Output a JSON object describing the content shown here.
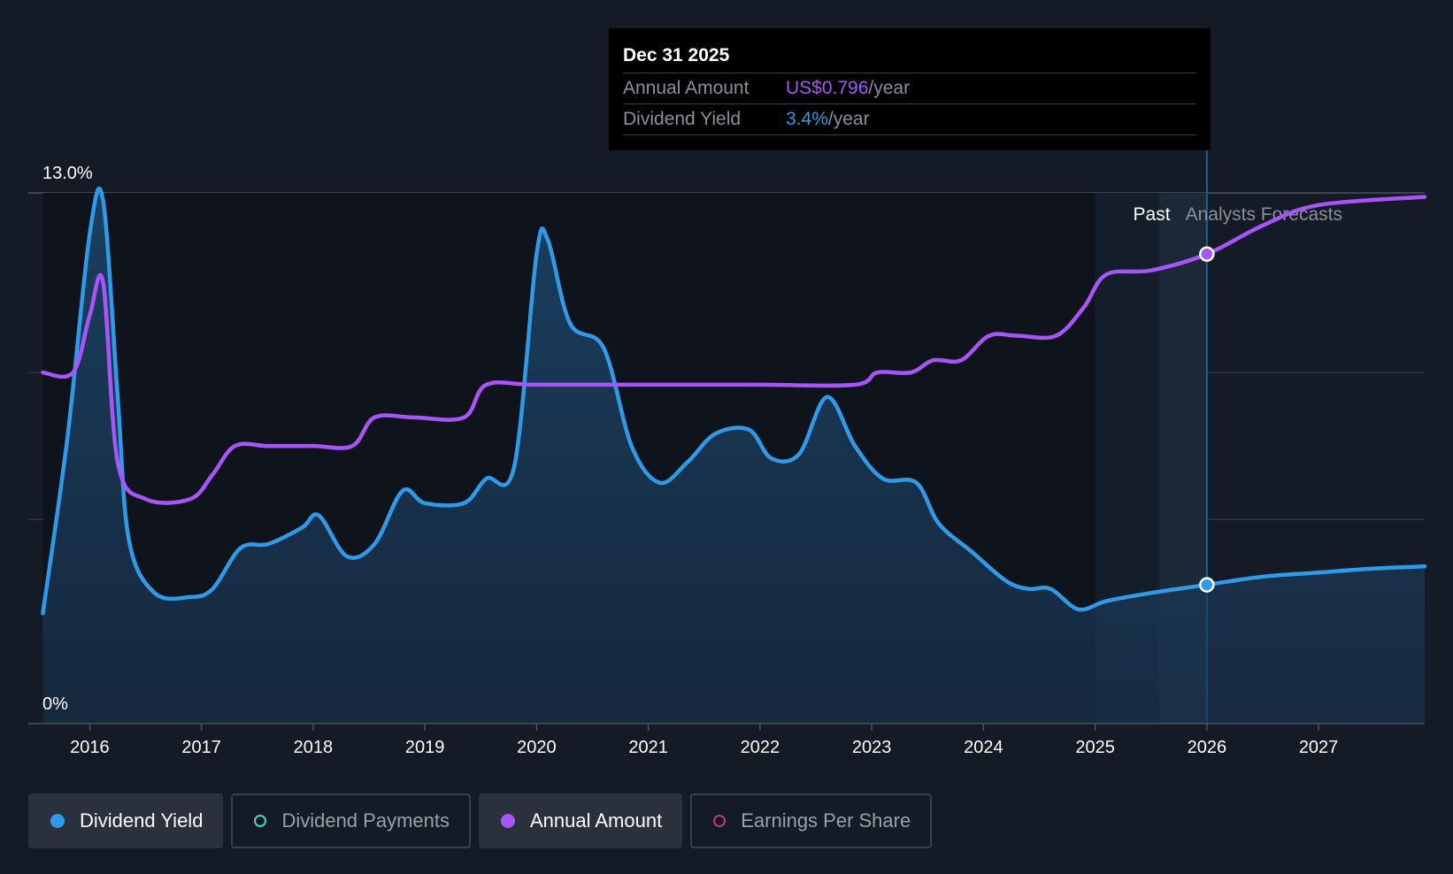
{
  "tooltip": {
    "date": "Dec 31 2025",
    "rows": [
      {
        "label": "Annual Amount",
        "value": "US$0.796",
        "unit": "/year"
      },
      {
        "label": "Dividend Yield",
        "value": "3.4%",
        "unit": "/year"
      }
    ]
  },
  "legend": [
    {
      "label": "Dividend Yield",
      "color": "#2f9be8",
      "active": true
    },
    {
      "label": "Dividend Payments",
      "color": "#4fd1c5",
      "active": false
    },
    {
      "label": "Annual Amount",
      "color": "#a855f7",
      "active": true
    },
    {
      "label": "Earnings Per Share",
      "color": "#c0397a",
      "active": false
    }
  ],
  "colors": {
    "yield": "#2f9be8",
    "amount": "#a855f7",
    "background": "#151b26"
  },
  "chart_data": {
    "type": "line",
    "xlim": [
      2015.45,
      2027.95
    ],
    "ylim": [
      0,
      13.0
    ],
    "y_tick_labels": [
      "0%",
      "13.0%"
    ],
    "x_ticks": [
      2016,
      2017,
      2018,
      2019,
      2020,
      2021,
      2022,
      2023,
      2024,
      2025,
      2026,
      2027
    ],
    "regions": {
      "past_label": "Past",
      "forecast_label": "Analysts Forecasts",
      "past_start": 2025.0,
      "cursor": 2026.0
    },
    "series": [
      {
        "name": "Dividend Yield",
        "unit": "%",
        "area": true,
        "points": [
          [
            2015.58,
            2.7
          ],
          [
            2015.8,
            7.0
          ],
          [
            2016.0,
            12.0
          ],
          [
            2016.12,
            12.8
          ],
          [
            2016.25,
            8.0
          ],
          [
            2016.35,
            4.5
          ],
          [
            2016.58,
            3.2
          ],
          [
            2016.9,
            3.1
          ],
          [
            2017.1,
            3.3
          ],
          [
            2017.35,
            4.3
          ],
          [
            2017.6,
            4.4
          ],
          [
            2017.9,
            4.8
          ],
          [
            2018.05,
            5.1
          ],
          [
            2018.3,
            4.1
          ],
          [
            2018.55,
            4.4
          ],
          [
            2018.8,
            5.7
          ],
          [
            2019.0,
            5.4
          ],
          [
            2019.35,
            5.4
          ],
          [
            2019.55,
            6.0
          ],
          [
            2019.8,
            6.3
          ],
          [
            2020.0,
            11.5
          ],
          [
            2020.1,
            11.85
          ],
          [
            2020.3,
            9.8
          ],
          [
            2020.6,
            9.2
          ],
          [
            2020.85,
            6.8
          ],
          [
            2021.1,
            5.9
          ],
          [
            2021.35,
            6.4
          ],
          [
            2021.6,
            7.1
          ],
          [
            2021.9,
            7.2
          ],
          [
            2022.1,
            6.5
          ],
          [
            2022.35,
            6.6
          ],
          [
            2022.6,
            8.0
          ],
          [
            2022.85,
            6.8
          ],
          [
            2023.1,
            6.0
          ],
          [
            2023.4,
            5.9
          ],
          [
            2023.6,
            4.9
          ],
          [
            2023.9,
            4.2
          ],
          [
            2024.2,
            3.5
          ],
          [
            2024.4,
            3.3
          ],
          [
            2024.6,
            3.3
          ],
          [
            2024.85,
            2.8
          ],
          [
            2025.1,
            3.0
          ],
          [
            2025.5,
            3.2
          ],
          [
            2026.0,
            3.4
          ],
          [
            2026.5,
            3.6
          ],
          [
            2027.0,
            3.7
          ],
          [
            2027.5,
            3.8
          ],
          [
            2027.95,
            3.85
          ]
        ]
      },
      {
        "name": "Annual Amount",
        "unit": "US$",
        "area": false,
        "points": [
          [
            2015.58,
            8.6
          ],
          [
            2015.85,
            8.6
          ],
          [
            2016.0,
            10.0
          ],
          [
            2016.12,
            10.8
          ],
          [
            2016.25,
            6.4
          ],
          [
            2016.5,
            5.5
          ],
          [
            2016.9,
            5.5
          ],
          [
            2017.1,
            6.1
          ],
          [
            2017.3,
            6.8
          ],
          [
            2017.6,
            6.8
          ],
          [
            2018.0,
            6.8
          ],
          [
            2018.35,
            6.8
          ],
          [
            2018.55,
            7.5
          ],
          [
            2018.9,
            7.5
          ],
          [
            2019.35,
            7.5
          ],
          [
            2019.55,
            8.3
          ],
          [
            2020.0,
            8.3
          ],
          [
            2021.0,
            8.3
          ],
          [
            2022.0,
            8.3
          ],
          [
            2022.85,
            8.3
          ],
          [
            2023.05,
            8.6
          ],
          [
            2023.35,
            8.6
          ],
          [
            2023.55,
            8.9
          ],
          [
            2023.8,
            8.9
          ],
          [
            2024.05,
            9.5
          ],
          [
            2024.3,
            9.5
          ],
          [
            2024.65,
            9.5
          ],
          [
            2024.9,
            10.2
          ],
          [
            2025.1,
            11.0
          ],
          [
            2025.5,
            11.1
          ],
          [
            2026.0,
            11.5
          ],
          [
            2026.5,
            12.2
          ],
          [
            2027.0,
            12.7
          ],
          [
            2027.95,
            12.9
          ]
        ]
      }
    ],
    "highlight_points": [
      {
        "series": "Annual Amount",
        "x": 2026.0,
        "y": 11.5
      },
      {
        "series": "Dividend Yield",
        "x": 2026.0,
        "y": 3.4
      }
    ]
  }
}
